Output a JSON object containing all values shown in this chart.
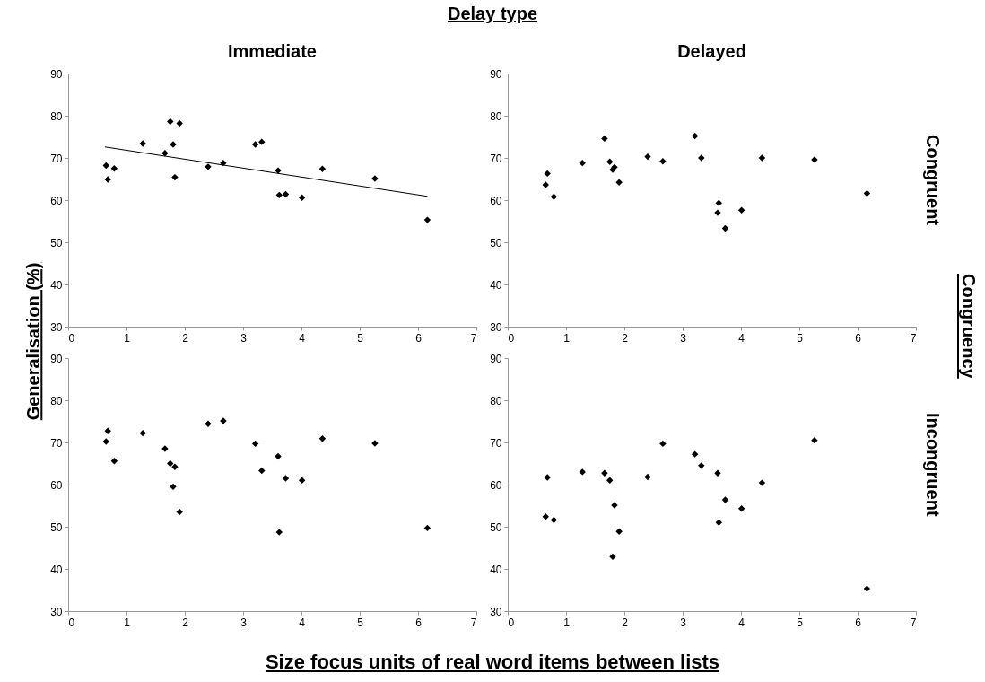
{
  "chart_data": [
    {
      "type": "scatter",
      "title": "Immediate",
      "ylabel": "Generalisation  (%)",
      "annotations": [
        "Delay type"
      ],
      "xlim": [
        0,
        7
      ],
      "ylim": [
        30,
        90
      ],
      "xticks": [
        0,
        1,
        2,
        3,
        4,
        5,
        6,
        7
      ],
      "yticks": [
        30,
        40,
        50,
        60,
        70,
        80,
        90
      ],
      "marker": "diamond",
      "x": [
        0.65,
        0.68,
        0.79,
        1.28,
        1.66,
        1.75,
        1.8,
        1.83,
        1.91,
        2.4,
        2.66,
        3.21,
        3.32,
        3.6,
        3.62,
        3.73,
        4.01,
        4.36,
        5.26,
        6.16
      ],
      "series": [
        {
          "color": "#000000",
          "values": [
            68.2,
            64.9,
            67.5,
            73.4,
            71.1,
            78.6,
            73.2,
            65.4,
            78.2,
            67.9,
            68.8,
            73.2,
            73.8,
            67.0,
            61.2,
            61.4,
            60.6,
            67.4,
            65.1,
            55.3
          ]
        },
        {
          "type": "line",
          "marker": "none",
          "color": "#000000",
          "x": [
            0.63,
            6.16
          ],
          "values": [
            72.6,
            60.9
          ]
        }
      ]
    },
    {
      "type": "scatter",
      "title": "Delayed",
      "annotations": [
        "Congruent",
        "Congruency"
      ],
      "xlim": [
        0,
        7
      ],
      "ylim": [
        30,
        90
      ],
      "xticks": [
        0,
        1,
        2,
        3,
        4,
        5,
        6,
        7
      ],
      "yticks": [
        30,
        40,
        50,
        60,
        70,
        80,
        90
      ],
      "marker": "diamond",
      "x": [
        0.65,
        0.68,
        0.79,
        1.28,
        1.66,
        1.75,
        1.8,
        1.83,
        1.91,
        2.4,
        2.66,
        3.21,
        3.32,
        3.6,
        3.62,
        3.73,
        4.01,
        4.36,
        5.26,
        6.16
      ],
      "series": [
        {
          "color": "#000000",
          "values": [
            63.6,
            66.3,
            60.8,
            68.8,
            74.6,
            69.1,
            67.2,
            67.8,
            64.2,
            70.3,
            69.2,
            75.2,
            70.0,
            57.0,
            59.3,
            53.3,
            57.6,
            70.0,
            69.6,
            61.6
          ]
        }
      ]
    },
    {
      "type": "scatter",
      "xlabel": "Size focus units of real word items between lists",
      "xlim": [
        0,
        7
      ],
      "ylim": [
        30,
        90
      ],
      "xticks": [
        0,
        1,
        2,
        3,
        4,
        5,
        6,
        7
      ],
      "yticks": [
        30,
        40,
        50,
        60,
        70,
        80,
        90
      ],
      "marker": "diamond",
      "x": [
        0.65,
        0.68,
        0.79,
        1.28,
        1.66,
        1.75,
        1.8,
        1.83,
        1.91,
        2.4,
        2.66,
        3.21,
        3.32,
        3.6,
        3.62,
        3.73,
        4.01,
        4.36,
        5.26,
        6.16
      ],
      "series": [
        {
          "color": "#000000",
          "values": [
            70.2,
            72.7,
            65.6,
            72.2,
            68.5,
            65.0,
            59.5,
            64.2,
            53.5,
            74.4,
            75.1,
            69.7,
            63.3,
            66.7,
            48.7,
            61.5,
            61.0,
            70.9,
            69.8,
            49.7
          ]
        }
      ]
    },
    {
      "type": "scatter",
      "annotations": [
        "Incongruent"
      ],
      "xlim": [
        0,
        7
      ],
      "ylim": [
        30,
        90
      ],
      "xticks": [
        0,
        1,
        2,
        3,
        4,
        5,
        6,
        7
      ],
      "yticks": [
        30,
        40,
        50,
        60,
        70,
        80,
        90
      ],
      "marker": "diamond",
      "x": [
        0.65,
        0.68,
        0.79,
        1.28,
        1.66,
        1.75,
        1.8,
        1.83,
        1.91,
        2.4,
        2.66,
        3.21,
        3.32,
        3.6,
        3.62,
        3.73,
        4.01,
        4.36,
        5.26,
        6.16
      ],
      "series": [
        {
          "color": "#000000",
          "values": [
            52.4,
            61.7,
            51.6,
            63.0,
            62.7,
            61.0,
            42.9,
            55.1,
            48.9,
            61.8,
            69.7,
            67.2,
            64.5,
            62.7,
            51.0,
            56.4,
            54.3,
            60.4,
            70.5,
            35.3
          ]
        }
      ]
    }
  ]
}
